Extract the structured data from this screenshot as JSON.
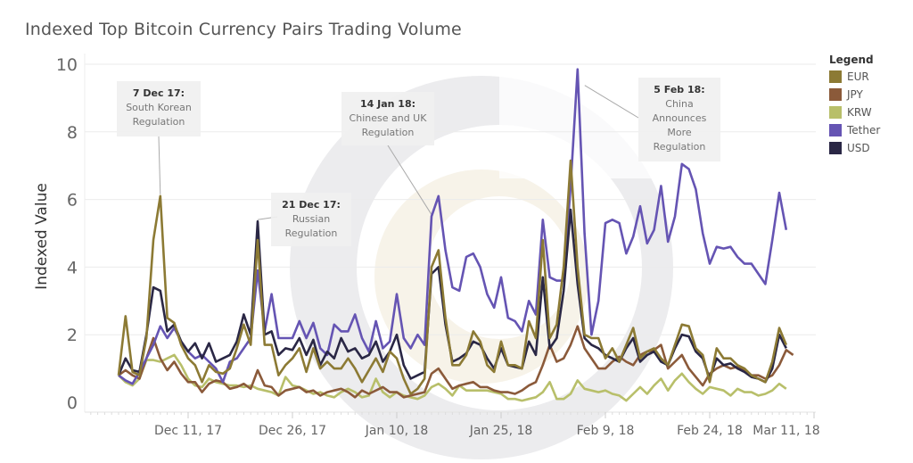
{
  "chart_data": {
    "type": "line",
    "title": "Indexed Top Bitcoin Currency Pairs Trading Volume",
    "xlabel": "",
    "ylabel": "Indexed Value",
    "x_start": "2017-12-01",
    "x_step": "1 day",
    "ylim": [
      0,
      10
    ],
    "yticks": [
      "0",
      "2",
      "4",
      "6",
      "8",
      "10"
    ],
    "xticks": [
      {
        "label": "Dec 11, 17",
        "day": 10
      },
      {
        "label": "Dec 26, 17",
        "day": 25
      },
      {
        "label": "Jan 10, 18",
        "day": 40
      },
      {
        "label": "Jan 25, 18",
        "day": 55
      },
      {
        "label": "Feb 9, 18",
        "day": 70
      },
      {
        "label": "Feb 24, 18",
        "day": 85
      },
      {
        "label": "Mar 11, 18",
        "day": 100
      }
    ],
    "grid": true,
    "legend_title": "Legend",
    "legend_position": "right",
    "series": [
      {
        "name": "EUR",
        "color": "#8c7a34",
        "values": [
          0.8,
          2.55,
          0.9,
          0.8,
          1.9,
          4.8,
          6.1,
          2.5,
          2.35,
          1.7,
          1.3,
          1.1,
          0.6,
          1.1,
          0.9,
          0.85,
          1.0,
          1.6,
          2.3,
          1.7,
          4.8,
          1.7,
          1.7,
          0.8,
          1.1,
          1.3,
          1.6,
          0.9,
          1.6,
          1.0,
          1.2,
          1.0,
          1.0,
          1.3,
          1.0,
          0.6,
          0.95,
          1.3,
          0.9,
          1.5,
          1.3,
          0.7,
          0.25,
          0.4,
          0.7,
          4.0,
          4.5,
          2.5,
          1.1,
          1.1,
          1.4,
          2.1,
          1.8,
          1.1,
          0.9,
          1.8,
          1.1,
          1.1,
          1.0,
          2.4,
          1.9,
          4.8,
          1.9,
          2.3,
          4.0,
          7.15,
          4.0,
          2.0,
          1.9,
          1.9,
          1.3,
          1.6,
          1.2,
          1.7,
          2.2,
          1.3,
          1.5,
          1.6,
          1.3,
          1.1,
          1.7,
          2.3,
          2.25,
          1.6,
          1.4,
          0.6,
          1.6,
          1.3,
          1.3,
          1.1,
          1.0,
          0.8,
          0.7,
          0.6,
          1.2,
          2.2,
          1.7
        ]
      },
      {
        "name": "JPY",
        "color": "#8b5a3a",
        "values": [
          0.8,
          0.95,
          0.8,
          0.7,
          1.3,
          1.9,
          1.3,
          0.95,
          1.2,
          0.85,
          0.6,
          0.6,
          0.3,
          0.55,
          0.65,
          0.6,
          0.4,
          0.45,
          0.55,
          0.4,
          0.95,
          0.5,
          0.45,
          0.2,
          0.35,
          0.4,
          0.45,
          0.3,
          0.35,
          0.2,
          0.3,
          0.35,
          0.4,
          0.3,
          0.15,
          0.35,
          0.25,
          0.35,
          0.45,
          0.3,
          0.3,
          0.15,
          0.2,
          0.25,
          0.3,
          0.85,
          1.0,
          0.7,
          0.4,
          0.5,
          0.55,
          0.6,
          0.45,
          0.45,
          0.35,
          0.3,
          0.3,
          0.25,
          0.35,
          0.5,
          0.6,
          1.1,
          1.7,
          1.2,
          1.3,
          1.7,
          2.25,
          1.6,
          1.3,
          1.0,
          1.0,
          1.2,
          1.35,
          1.2,
          1.1,
          1.4,
          1.5,
          1.55,
          1.7,
          1.0,
          1.2,
          1.4,
          1.0,
          0.75,
          0.5,
          0.85,
          1.0,
          1.1,
          1.0,
          1.05,
          0.95,
          0.8,
          0.8,
          0.7,
          0.8,
          1.1,
          1.55,
          1.4
        ]
      },
      {
        "name": "KRW",
        "color": "#b8bf6a",
        "values": [
          0.8,
          0.6,
          0.5,
          0.7,
          1.25,
          1.25,
          1.2,
          1.3,
          1.4,
          1.1,
          0.7,
          0.5,
          0.45,
          0.7,
          0.6,
          0.55,
          0.5,
          0.5,
          0.45,
          0.5,
          0.4,
          0.35,
          0.3,
          0.2,
          0.75,
          0.5,
          0.45,
          0.35,
          0.25,
          0.3,
          0.2,
          0.15,
          0.3,
          0.4,
          0.3,
          0.15,
          0.2,
          0.7,
          0.3,
          0.15,
          0.3,
          0.2,
          0.15,
          0.1,
          0.2,
          0.45,
          0.55,
          0.4,
          0.2,
          0.5,
          0.35,
          0.35,
          0.35,
          0.35,
          0.3,
          0.25,
          0.1,
          0.1,
          0.05,
          0.1,
          0.15,
          0.3,
          0.6,
          0.1,
          0.1,
          0.25,
          0.65,
          0.4,
          0.35,
          0.3,
          0.35,
          0.25,
          0.2,
          0.05,
          0.25,
          0.45,
          0.25,
          0.5,
          0.7,
          0.35,
          0.65,
          0.85,
          0.6,
          0.4,
          0.25,
          0.45,
          0.4,
          0.35,
          0.2,
          0.4,
          0.3,
          0.3,
          0.2,
          0.25,
          0.35,
          0.55,
          0.4
        ]
      },
      {
        "name": "Tether",
        "color": "#6554b3",
        "values": [
          0.8,
          0.65,
          0.55,
          0.9,
          1.3,
          1.7,
          2.25,
          1.9,
          2.2,
          1.8,
          1.5,
          1.3,
          1.4,
          1.2,
          1.0,
          0.6,
          1.2,
          1.3,
          1.6,
          1.9,
          3.9,
          2.1,
          3.2,
          1.9,
          1.9,
          1.9,
          2.4,
          1.9,
          2.35,
          1.6,
          1.4,
          2.3,
          2.1,
          2.1,
          2.6,
          1.9,
          1.5,
          2.4,
          1.6,
          1.8,
          3.2,
          1.9,
          1.6,
          2.0,
          1.7,
          5.5,
          6.1,
          4.5,
          3.4,
          3.3,
          4.3,
          4.4,
          4.0,
          3.2,
          2.8,
          3.7,
          2.5,
          2.4,
          2.1,
          3.0,
          2.6,
          5.4,
          3.7,
          3.6,
          3.6,
          6.4,
          9.85,
          5.0,
          2.0,
          3.0,
          5.3,
          5.4,
          5.3,
          4.4,
          4.9,
          5.8,
          4.7,
          5.1,
          6.4,
          4.75,
          5.5,
          7.05,
          6.9,
          6.3,
          5.0,
          4.1,
          4.6,
          4.55,
          4.6,
          4.3,
          4.1,
          4.1,
          3.8,
          3.5,
          4.8,
          6.2,
          5.1
        ]
      },
      {
        "name": "USD",
        "color": "#2a2745",
        "values": [
          0.8,
          1.3,
          0.95,
          0.9,
          2.0,
          3.4,
          3.3,
          2.1,
          2.3,
          1.8,
          1.5,
          1.75,
          1.3,
          1.75,
          1.2,
          1.3,
          1.4,
          1.8,
          2.6,
          2.0,
          5.35,
          2.0,
          2.1,
          1.4,
          1.6,
          1.55,
          1.9,
          1.4,
          1.85,
          1.1,
          1.5,
          1.3,
          1.9,
          1.5,
          1.6,
          1.3,
          1.4,
          1.8,
          1.2,
          1.5,
          2.0,
          1.1,
          0.7,
          0.8,
          0.9,
          3.8,
          4.0,
          2.3,
          1.2,
          1.3,
          1.45,
          1.8,
          1.7,
          1.3,
          1.0,
          1.6,
          1.1,
          1.05,
          1.0,
          1.8,
          1.4,
          3.7,
          1.6,
          1.9,
          3.3,
          5.7,
          3.5,
          1.9,
          1.7,
          1.6,
          1.4,
          1.3,
          1.2,
          1.6,
          1.9,
          1.2,
          1.4,
          1.5,
          1.2,
          1.1,
          1.6,
          2.0,
          1.95,
          1.5,
          1.3,
          0.7,
          1.3,
          1.1,
          1.15,
          1.0,
          0.9,
          0.75,
          0.7,
          0.6,
          1.0,
          2.0,
          1.6
        ]
      }
    ],
    "annotations": [
      {
        "date_label": "7 Dec 17:",
        "text": "South Korean Regulation",
        "day": 6
      },
      {
        "date_label": "21 Dec 17:",
        "text": "Russian Regulation",
        "day": 20
      },
      {
        "date_label": "14 Jan 18:",
        "text": "Chinese and UK Regulation",
        "day": 44
      },
      {
        "date_label": "5 Feb 18:",
        "text": "China Announces More Regulation",
        "day": 66
      }
    ]
  }
}
